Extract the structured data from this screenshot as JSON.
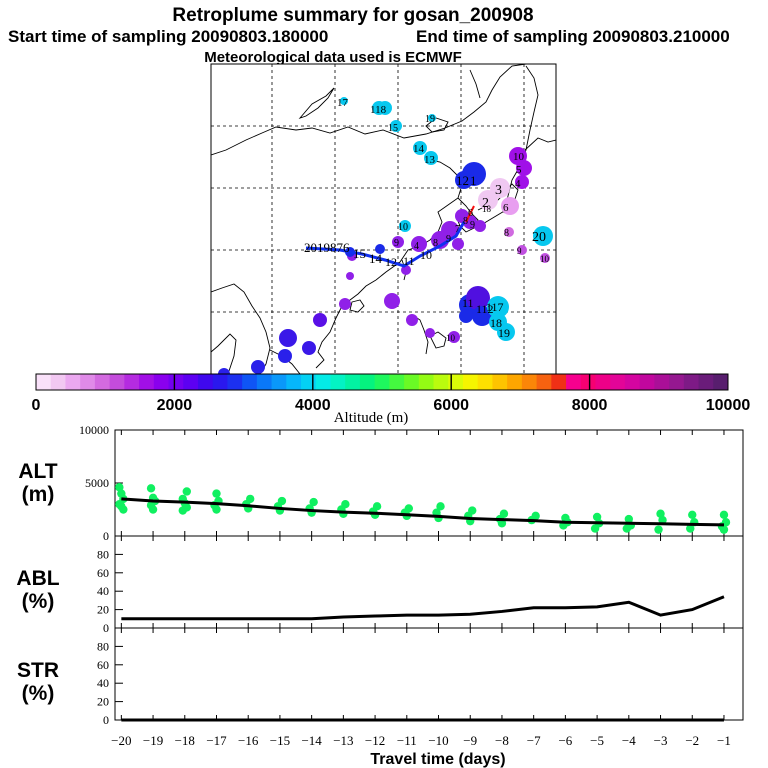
{
  "title": "Retroplume summary for gosan_200908",
  "start_sampling": "Start time of sampling 20090803.180000",
  "end_sampling": "End time of sampling 20090803.210000",
  "met_data": "Meteorological data used is ECMWF",
  "colorbar": {
    "label": "Altitude (m)",
    "ticks": [
      "0",
      "2000",
      "4000",
      "6000",
      "8000",
      "10000"
    ],
    "colors": [
      "#f9e1f9",
      "#f2c8f2",
      "#eba8f0",
      "#e08ae8",
      "#d36ae0",
      "#c44cdc",
      "#b52be0",
      "#a20fe6",
      "#8a00ee",
      "#7400f0",
      "#5d00f2",
      "#3f08ee",
      "#2a18ee",
      "#1c30f0",
      "#0f55f5",
      "#0a78f8",
      "#0a98fa",
      "#06b7fb",
      "#04d1f4",
      "#04ebe7",
      "#03f3c4",
      "#02f3a2",
      "#05f37f",
      "#1ef75e",
      "#44f93f",
      "#6afa25",
      "#94fc14",
      "#bafc0e",
      "#dbfc08",
      "#f6f500",
      "#fde000",
      "#fdc400",
      "#fda600",
      "#fb8608",
      "#f66210",
      "#f03016",
      "#f6008e",
      "#f60072",
      "#ee0088",
      "#e30598",
      "#d405a0",
      "#c1079e",
      "#aa0f98",
      "#951890",
      "#7e1a86",
      "#6a1c7a",
      "#581e6e"
    ]
  },
  "trajectory_labels": [
    {
      "text": "17",
      "color": "#07c8ef"
    },
    {
      "text": "118",
      "color": "#07c8ef"
    },
    {
      "text": "19",
      "color": "#07c8ef"
    },
    {
      "text": "15",
      "color": "#07c8ef"
    },
    {
      "text": "14",
      "color": "#07c8ef"
    },
    {
      "text": "13",
      "color": "#07c8ef"
    },
    {
      "text": "10",
      "color": "#a010e8"
    },
    {
      "text": "5",
      "color": "#a010e8"
    },
    {
      "text": "4",
      "color": "#a010e8"
    },
    {
      "text": "12",
      "color": "#1a2ae8"
    },
    {
      "text": "1",
      "color": "#1a2ae8"
    },
    {
      "text": "3",
      "color": "#f0c8f2"
    },
    {
      "text": "2",
      "color": "#f0c8f2"
    },
    {
      "text": "6",
      "color": "#e89ef0"
    },
    {
      "text": "20",
      "color": "#07c8ef"
    },
    {
      "text": "8",
      "color": "#d06ae0"
    },
    {
      "text": "9",
      "color": "#c050e0"
    },
    {
      "text": "10",
      "color": "#c050e0"
    },
    {
      "text": "18",
      "color": "#c050e0"
    },
    {
      "text": "10",
      "color": "#07c8ef"
    },
    {
      "text": "2019876",
      "color": "#1030f0"
    },
    {
      "text": "15",
      "color": "#1030f0"
    },
    {
      "text": "14",
      "color": "#1030f0"
    },
    {
      "text": "12",
      "color": "#1030f0"
    },
    {
      "text": "11",
      "color": "#1030f0"
    },
    {
      "text": "10",
      "color": "#1030f0"
    },
    {
      "text": "9",
      "color": "#9020e8"
    },
    {
      "text": "4",
      "color": "#9020e8"
    },
    {
      "text": "8",
      "color": "#9020e8"
    },
    {
      "text": "9",
      "color": "#c050e0"
    },
    {
      "text": "8",
      "color": "#9020e8"
    },
    {
      "text": "7",
      "color": "#9020e8"
    },
    {
      "text": "6",
      "color": "#9020e8"
    },
    {
      "text": "9",
      "color": "#9020e8"
    },
    {
      "text": "11",
      "color": "#1a2ae8"
    },
    {
      "text": "112",
      "color": "#1a2ae8"
    },
    {
      "text": "117",
      "color": "#1a2ae8"
    },
    {
      "text": "18",
      "color": "#07c8ef"
    },
    {
      "text": "19",
      "color": "#07c8ef"
    },
    {
      "text": "10",
      "color": "#9020e8"
    }
  ],
  "chart_data": [
    {
      "type": "scatter",
      "name": "ALT",
      "ylabel": "ALT\n(m)",
      "ylabel_line1": "ALT",
      "ylabel_line2": "(m)",
      "ylim": [
        0,
        10000
      ],
      "yticks": [
        "10000",
        "5000",
        "0"
      ],
      "xlim": [
        -20,
        -0.5
      ],
      "mean_line": {
        "x": [
          -20,
          -19,
          -18,
          -17,
          -16,
          -15,
          -14,
          -13,
          -12,
          -11,
          -10,
          -9,
          -8,
          -7,
          -6,
          -5,
          -4,
          -3,
          -2,
          -1
        ],
        "y": [
          3500,
          3300,
          3200,
          3050,
          2850,
          2600,
          2400,
          2250,
          2150,
          2000,
          1850,
          1650,
          1550,
          1450,
          1300,
          1250,
          1200,
          1150,
          1100,
          1050
        ]
      },
      "points": {
        "x": [
          -20,
          -20,
          -20,
          -20,
          -20,
          -20,
          -19,
          -19,
          -19,
          -19,
          -19,
          -18,
          -18,
          -18,
          -18,
          -18,
          -17,
          -17,
          -17,
          -17,
          -16,
          -16,
          -16,
          -15,
          -15,
          -15,
          -14,
          -14,
          -14,
          -13,
          -13,
          -13,
          -12,
          -12,
          -12,
          -11,
          -11,
          -11,
          -10,
          -10,
          -10,
          -9,
          -9,
          -9,
          -8,
          -8,
          -8,
          -7,
          -7,
          -6,
          -6,
          -6,
          -5,
          -5,
          -5,
          -4,
          -4,
          -4,
          -3,
          -3,
          -3,
          -2,
          -2,
          -2,
          -1,
          -1,
          -1,
          -1
        ],
        "y": [
          4600,
          4000,
          3500,
          3000,
          2800,
          2500,
          4500,
          3600,
          3300,
          2900,
          2500,
          4200,
          3500,
          3100,
          2700,
          2400,
          4000,
          3300,
          2900,
          2500,
          3500,
          3000,
          2600,
          3300,
          2800,
          2400,
          3200,
          2600,
          2200,
          3000,
          2500,
          2100,
          2800,
          2300,
          2000,
          2600,
          2200,
          1900,
          2800,
          2200,
          1700,
          2400,
          1900,
          1400,
          2100,
          1600,
          1200,
          1900,
          1500,
          1700,
          1300,
          1000,
          1800,
          1200,
          700,
          1600,
          1000,
          700,
          2100,
          1500,
          600,
          2000,
          1300,
          700,
          2000,
          1300,
          900,
          600
        ]
      },
      "point_color": "#10f060",
      "line_color": "#000000"
    },
    {
      "type": "line",
      "name": "ABL",
      "ylabel_line1": "ABL",
      "ylabel_line2": "(%)",
      "ylim": [
        0,
        100
      ],
      "yticks": [
        "80",
        "60",
        "40",
        "20",
        "0"
      ],
      "x": [
        -20,
        -19,
        -18,
        -17,
        -16,
        -15,
        -14,
        -13,
        -12,
        -11,
        -10,
        -9,
        -8,
        -7,
        -6,
        -5,
        -4,
        -3,
        -2,
        -1
      ],
      "y": [
        10,
        10,
        10,
        10,
        10,
        10,
        10,
        12,
        13,
        14,
        14,
        15,
        18,
        22,
        22,
        23,
        28,
        14,
        20,
        34
      ]
    },
    {
      "type": "line",
      "name": "STR",
      "ylabel_line1": "STR",
      "ylabel_line2": "(%)",
      "ylim": [
        0,
        100
      ],
      "yticks": [
        "80",
        "60",
        "40",
        "20",
        "0"
      ],
      "x": [
        -20,
        -19,
        -18,
        -17,
        -16,
        -15,
        -14,
        -13,
        -12,
        -11,
        -10,
        -9,
        -8,
        -7,
        -6,
        -5,
        -4,
        -3,
        -2,
        -1
      ],
      "y": [
        0,
        0,
        0,
        0,
        0,
        0,
        0,
        0,
        0,
        0,
        0,
        0,
        0,
        0,
        0,
        0,
        0,
        0,
        0,
        0
      ]
    }
  ],
  "xaxis": {
    "label": "Travel time (days)",
    "ticks": [
      "−20",
      "−19",
      "−18",
      "−17",
      "−16",
      "−15",
      "−14",
      "−13",
      "−12",
      "−11",
      "−10",
      "−9",
      "−8",
      "−7",
      "−6",
      "−5",
      "−4",
      "−3",
      "−2",
      "−1"
    ]
  }
}
